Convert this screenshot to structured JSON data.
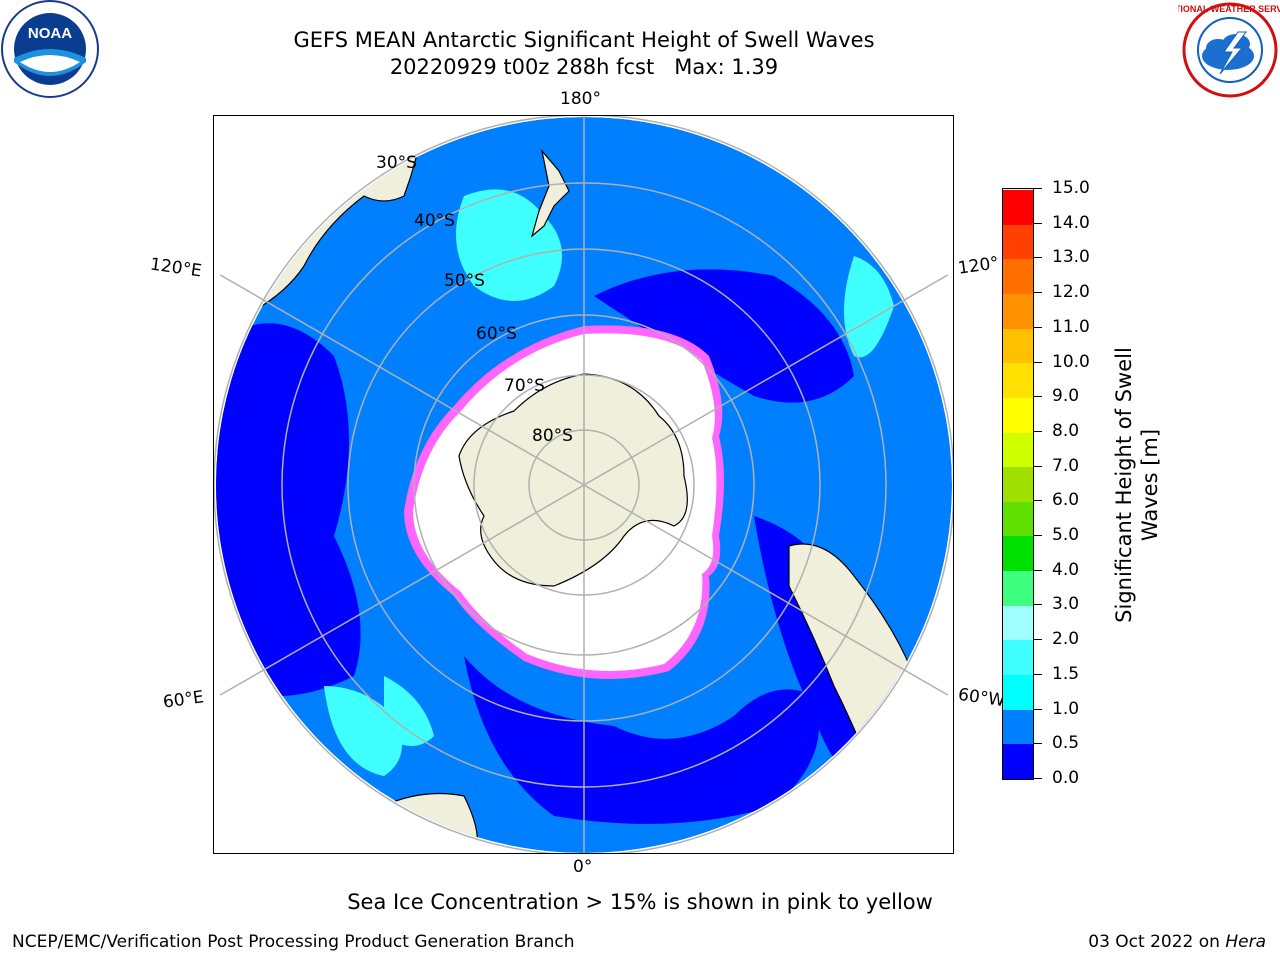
{
  "header": {
    "title": "GEFS MEAN Antarctic Significant Height of Swell Waves",
    "subtitle": "20220929 t00z 288h fcst   Max: 1.39"
  },
  "logos": {
    "left": {
      "text": "NOAA",
      "icon": "noaa-logo"
    },
    "right": {
      "text": "NATIONAL WEATHER SERVICE",
      "icon": "nws-logo"
    }
  },
  "map": {
    "projection": "south-polar-stereographic",
    "lon_labels": {
      "top": "180°",
      "bottom": "0°",
      "upper_left": "120°E",
      "upper_right": "120°",
      "lower_left": "60°E",
      "lower_right": "60°W"
    },
    "lat_labels": [
      "30°S",
      "40°S",
      "50°S",
      "60°S",
      "70°S",
      "80°S"
    ],
    "colors": {
      "land": "#efefdb",
      "ocean_low": "#0000ff",
      "ocean_mid": "#0080ff",
      "ocean_high": "#00ffff",
      "grid": "#b0b0b0",
      "ice_edge": "#ff66ff",
      "ice_core": "#ffffff"
    }
  },
  "colorbar": {
    "label": "Significant Height of Swell\nWaves [m]",
    "ticks": [
      "0.0",
      "0.5",
      "1.0",
      "1.5",
      "2.0",
      "3.0",
      "4.0",
      "5.0",
      "6.0",
      "7.0",
      "8.0",
      "9.0",
      "10.0",
      "11.0",
      "12.0",
      "13.0",
      "14.0",
      "15.0"
    ],
    "colors": [
      "#0000ff",
      "#0080ff",
      "#00ffff",
      "#40ffff",
      "#a0ffff",
      "#40ff80",
      "#00e000",
      "#60e000",
      "#a0e000",
      "#d0ff00",
      "#ffff00",
      "#ffe000",
      "#ffc000",
      "#ff9000",
      "#ff7000",
      "#ff4000",
      "#ff0000"
    ]
  },
  "footer": {
    "note": "Sea Ice Concentration > 15% is shown in pink to yellow",
    "credit": "NCEP/EMC/Verification Post Processing Product Generation Branch",
    "date": "03 Oct 2022 on",
    "machine": "Hera"
  }
}
